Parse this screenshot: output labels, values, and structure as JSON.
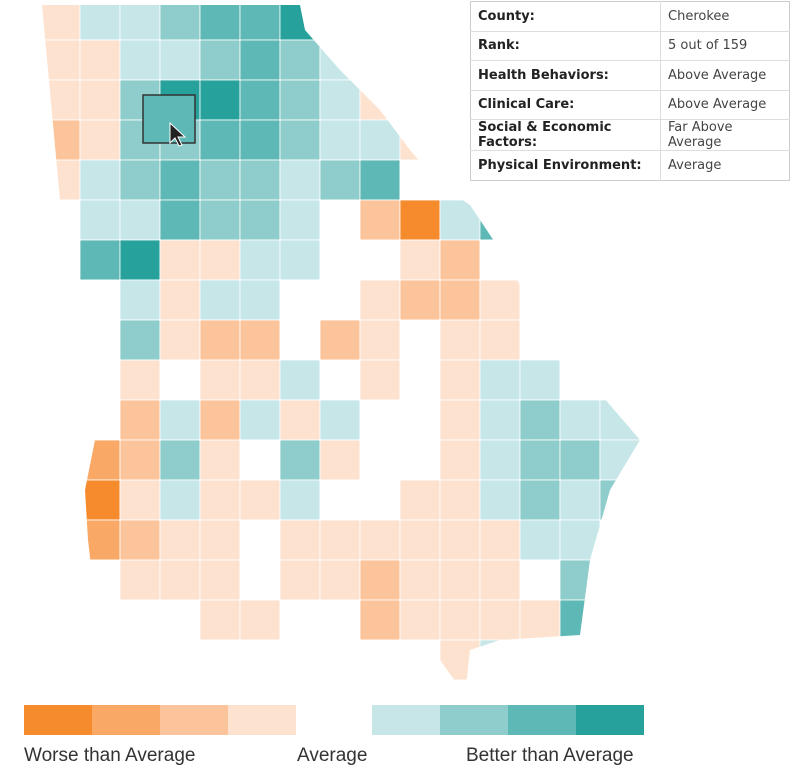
{
  "map": {
    "selected_county": "Cherokee",
    "colors": {
      "worse_1": "#f68b2e",
      "worse_2": "#f9a865",
      "worse_3": "#fcc49a",
      "worse_4": "#fde3cf",
      "average": "#ffffff",
      "better_1": "#c6e6e7",
      "better_2": "#8fcccc",
      "better_3": "#5db8b6",
      "better_4": "#26a19c"
    }
  },
  "info": {
    "rows": [
      {
        "label": "County:",
        "value": "Cherokee"
      },
      {
        "label": "Rank:",
        "value": "5 out of 159"
      },
      {
        "label": "Health Behaviors:",
        "value": "Above Average"
      },
      {
        "label": "Clinical Care:",
        "value": "Above Average"
      },
      {
        "label": "Social & Economic Factors:",
        "value": "Far Above Average"
      },
      {
        "label": "Physical Environment:",
        "value": "Average"
      }
    ]
  },
  "legend": {
    "worse_label": "Worse than Average",
    "average_label": "Average",
    "better_label": "Better than Average"
  }
}
